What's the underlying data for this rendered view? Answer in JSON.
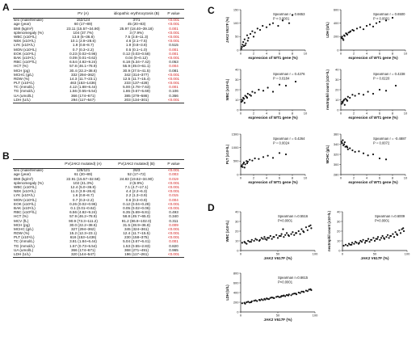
{
  "panels": {
    "a": "A",
    "b": "B",
    "c": "C",
    "d": "D"
  },
  "table_a": {
    "headers": [
      "",
      "PV (A)",
      "idiopathic erythrocytosis (B)",
      "P value"
    ],
    "rows": [
      [
        "sex (male/female)",
        "152/124",
        "37/1",
        "<0.001"
      ],
      [
        "age (year)",
        "60 (17~89)",
        "45 (20~83)",
        "<0.001"
      ],
      [
        "BMI (kg/m²)",
        "23.11 (15.57~34.90)",
        "25.97 (18.40~39.18)",
        "0.001"
      ],
      [
        "splenomegaly (%)",
        "104 (37.7%)",
        "3 (7.9%)",
        "<0.001"
      ],
      [
        "WBC (x10⁹/L)",
        "13.8 (5~36.8)",
        "7.5 (3.8~11.3)",
        "<0.001"
      ],
      [
        "NEK (x10⁹/L)",
        "10.1 (2.9~28.6)",
        "4.6 (2.1~7.5)",
        "<0.001"
      ],
      [
        "LYK (x10⁹/L)",
        "1.9 (0.8~8.7)",
        "1.9 (0.8~3.8)",
        "0.515"
      ],
      [
        "MON (x10⁹/L)",
        "0.7 (0.3~2.2)",
        "0.5 (0.1~1.0)",
        "0.001"
      ],
      [
        "EOK (x10⁹/L)",
        "0.23 (0.02~0.96)",
        "0.12 (0.03~0.58)",
        "0.001"
      ],
      [
        "BAK (x10⁹/L)",
        "0.09 (0.01~0.62)",
        "0.04 (0~0.12)",
        "<0.001"
      ],
      [
        "RBC (x10¹²/L)",
        "6.54 (4.82~9.24)",
        "6.18 (5.34~7.42)",
        "0.053"
      ],
      [
        "HCT (%)",
        "57.8 (46.1~78.9)",
        "55.9 (49.0~61.1)",
        "0.004"
      ],
      [
        "MCH (pg)",
        "30.4 (22.2~38.6)",
        "30.9 (27.5~41.5)",
        "0.081"
      ],
      [
        "MCHC (g/L)",
        "332 (294~362)",
        "342 (314~377)",
        "<0.001"
      ],
      [
        "RDW (%)",
        "14.3 (11.7~23.1)",
        "12.5 (11.7~15.4)",
        "<0.001"
      ],
      [
        "PLT (x10⁹/L)",
        "463 (153~1436)",
        "233 (137~428)",
        "<0.001"
      ],
      [
        "TC (mmol/L)",
        "4.12 (1.88~6.44)",
        "5.00 (2.78~7.63)",
        "0.001"
      ],
      [
        "TG (mmol/L)",
        "1.56 (0.55~5.54)",
        "1.86 (0.67~5.69)",
        "0.106"
      ],
      [
        "UA (umol/L)",
        "366 (174~671)",
        "385 (279~586)",
        "0.366"
      ],
      [
        "LDH (U/L)",
        "294 (117~547)",
        "203 (134~301)",
        "<0.001"
      ]
    ]
  },
  "table_b": {
    "headers": [
      "",
      "PV(JAK2 mutated) (A)",
      "PV(JAK2 mutated) (B)",
      "P value"
    ],
    "rows": [
      [
        "sex (male/female)",
        "126/121",
        "26/3",
        "<0.001"
      ],
      [
        "age (year)",
        "61 (20~89)",
        "52 (17~72)",
        "0.003"
      ],
      [
        "BMI (kg/m²)",
        "22.91 (15.57~32.58)",
        "24.83 (19.62~34.90)",
        "0.019"
      ],
      [
        "splenomegaly (%)",
        "102 (41.3%)",
        "2 (6.9%)",
        "<0.001"
      ],
      [
        "WBC (x10⁹/L)",
        "12.4 (5.0~36.8)",
        "7.1 (4.7~17.1)",
        "<0.001"
      ],
      [
        "NEK (x10⁹/L)",
        "11.3 (3.9~26.6)",
        "4.4 (2.2~6.3)",
        "<0.001"
      ],
      [
        "LYK (x10⁹/L)",
        "1.6 (0.8~8.7)",
        "2.2 (1.3~3.9)",
        "0.015"
      ],
      [
        "MON (x10⁹/L)",
        "0.7 (0.3~2.2)",
        "0.6 (0.3~0.9)",
        "0.004"
      ],
      [
        "EOK (x10⁹/L)",
        "0.26 (0.02~0.96)",
        "0.12 (0.04~0.28)",
        "<0.001"
      ],
      [
        "BAK (x10⁹/L)",
        "0.1 (0.01~0.62)",
        "0.05 (0.02~0.06)",
        "<0.001"
      ],
      [
        "RBC (x10¹²/L)",
        "6.56 (4.82~9.24)",
        "6.35 (5.69~6.81)",
        "0.493"
      ],
      [
        "HCT (%)",
        "57.9 (46.2~78.9)",
        "58.8 (49.7~65.0)",
        "0.340"
      ],
      [
        "MCV (fL)",
        "90.9 (73.3~111.2)",
        "91.2 (86.9~102.0)",
        "0.311"
      ],
      [
        "MCH (pg)",
        "30.0 (22.2~38.6)",
        "31.5 (28.9~36.8)",
        "0.009"
      ],
      [
        "MCHC (g/L)",
        "327 (294~362)",
        "345 (324~361)",
        "<0.001"
      ],
      [
        "RDW (%)",
        "15.2 (12.3~23.1)",
        "12.4 (11.7~15.5)",
        "<0.001"
      ],
      [
        "PLT (x10⁹/L)",
        "616 (153~1436)",
        "230 (158~375)",
        "<0.001"
      ],
      [
        "TC (mmol/L)",
        "3.81 (1.84~6.44)",
        "5.04 (3.67~6.41)",
        "0.001"
      ],
      [
        "TG (mmol/L)",
        "1.57 (0.73~5.54)",
        "1.53 (0.55~2.83)",
        "0.820"
      ],
      [
        "UA (umol/L)",
        "366 (174~671)",
        "368 (271~491)",
        "0.965"
      ],
      [
        "LDH (U/L)",
        "320 (144~547)",
        "196 (117~261)",
        "<0.001"
      ]
    ]
  },
  "chart_data": [
    {
      "type": "scatter",
      "panel": "C",
      "xlabel": "expression of WT1 gene (%)",
      "ylabel": "JAK2 V617F (%)",
      "annotations": [
        "Spearman r = 0.6653",
        "P < 0.0001"
      ],
      "x_ticks": [
        "0",
        "2",
        "4",
        "6",
        "8",
        "10"
      ],
      "y_ticks": [
        "0",
        "50",
        "100",
        "150"
      ],
      "xlim": [
        0,
        10
      ],
      "ylim": [
        0,
        150
      ],
      "x": [
        0.1,
        0.2,
        0.3,
        0.4,
        0.5,
        0.6,
        0.8,
        1.0,
        1.2,
        1.5,
        1.8,
        2.2,
        2.6,
        3.0,
        3.4,
        4.0,
        4.5,
        5.0,
        5.8,
        6.5,
        7.5,
        8.0,
        2.0,
        1.1,
        0.7
      ],
      "y": [
        5,
        12,
        20,
        30,
        15,
        40,
        25,
        55,
        45,
        60,
        70,
        65,
        80,
        75,
        90,
        85,
        95,
        100,
        90,
        110,
        100,
        130,
        50,
        35,
        18
      ]
    },
    {
      "type": "scatter",
      "panel": "C",
      "xlabel": "expression of WT1 gene (%)",
      "ylabel": "LDH (U/L)",
      "annotations": [
        "Spearman r = 0.6500",
        "P < 0.0001"
      ],
      "x_ticks": [
        "0",
        "2",
        "4",
        "6",
        "8",
        "10"
      ],
      "y_ticks": [
        "0",
        "200",
        "400",
        "600"
      ],
      "xlim": [
        0,
        10
      ],
      "ylim": [
        0,
        600
      ],
      "x": [
        0.1,
        0.2,
        0.3,
        0.5,
        0.6,
        0.8,
        1.0,
        1.2,
        1.5,
        1.8,
        2.0,
        2.5,
        3.0,
        3.5,
        4.0,
        4.5,
        5.0,
        5.5,
        6.0,
        7.0,
        8.0,
        0.4,
        0.9,
        1.4
      ],
      "y": [
        180,
        200,
        170,
        220,
        210,
        250,
        230,
        260,
        280,
        300,
        290,
        320,
        340,
        310,
        360,
        380,
        350,
        400,
        420,
        440,
        480,
        150,
        240,
        270
      ]
    },
    {
      "type": "scatter",
      "panel": "C",
      "xlabel": "expression of WT1 gene (%)",
      "ylabel": "WBC (x10⁹/L)",
      "annotations": [
        "Spearman r = 0.4276",
        "P = 0.0184"
      ],
      "x_ticks": [
        "0",
        "2",
        "4",
        "6",
        "8",
        "10"
      ],
      "y_ticks": [
        "0",
        "10",
        "20",
        "30",
        "40"
      ],
      "xlim": [
        0,
        10
      ],
      "ylim": [
        0,
        40
      ],
      "x": [
        0.1,
        0.2,
        0.3,
        0.4,
        0.5,
        0.7,
        0.9,
        1.1,
        1.4,
        1.8,
        2.2,
        2.8,
        3.5,
        4.2,
        5.0,
        6.0,
        7.0,
        8.5,
        0.6,
        1.0,
        1.6
      ],
      "y": [
        8,
        10,
        9,
        12,
        11,
        14,
        13,
        16,
        15,
        18,
        17,
        20,
        19,
        22,
        18,
        25,
        24,
        28,
        7,
        12,
        14
      ]
    },
    {
      "type": "scatter",
      "panel": "C",
      "xlabel": "expression of WT1 gene (%)",
      "ylabel": "neutrophil count (x10⁹/L)",
      "annotations": [
        "Spearman r = 0.4238",
        "P = 0.0220"
      ],
      "x_ticks": [
        "0",
        "2",
        "4",
        "6",
        "8",
        "10"
      ],
      "y_ticks": [
        "0",
        "10",
        "20",
        "30",
        "40"
      ],
      "xlim": [
        0,
        10
      ],
      "ylim": [
        0,
        40
      ],
      "x": [
        0.1,
        0.2,
        0.3,
        0.4,
        0.5,
        0.7,
        0.9,
        1.1,
        1.4,
        1.8,
        2.2,
        2.8,
        3.5,
        4.2,
        5.0,
        6.0,
        7.0,
        8.5,
        0.6,
        1.0
      ],
      "y": [
        6,
        8,
        7,
        9,
        10,
        11,
        10,
        13,
        12,
        15,
        14,
        16,
        15,
        18,
        16,
        20,
        19,
        24,
        5,
        9
      ]
    },
    {
      "type": "scatter",
      "panel": "C",
      "xlabel": "expression of WT1 gene (%)",
      "ylabel": "PLT (x10⁹/L)",
      "annotations": [
        "Spearman r = 0.4264",
        "P = 0.0024"
      ],
      "x_ticks": [
        "0",
        "2",
        "4",
        "6",
        "8",
        "10"
      ],
      "y_ticks": [
        "0",
        "500",
        "1000",
        "1500"
      ],
      "xlim": [
        0,
        10
      ],
      "ylim": [
        0,
        1500
      ],
      "x": [
        0.1,
        0.2,
        0.3,
        0.4,
        0.5,
        0.7,
        0.9,
        1.1,
        1.4,
        1.8,
        2.2,
        2.8,
        3.5,
        4.2,
        5.0,
        6.0,
        7.0,
        0.6,
        1.0
      ],
      "y": [
        300,
        350,
        280,
        400,
        450,
        380,
        500,
        480,
        550,
        520,
        600,
        580,
        650,
        700,
        620,
        800,
        750,
        260,
        420
      ]
    },
    {
      "type": "scatter",
      "panel": "C",
      "xlabel": "expression of WT1 gene (%)",
      "ylabel": "MCHC (g/L)",
      "annotations": [
        "Spearman r = -0.4887",
        "P = 0.0072"
      ],
      "x_ticks": [
        "0",
        "2",
        "4",
        "6",
        "8",
        "10"
      ],
      "y_ticks": [
        "280",
        "300",
        "320",
        "340",
        "360"
      ],
      "xlim": [
        0,
        10
      ],
      "ylim": [
        280,
        360
      ],
      "x": [
        0.1,
        0.2,
        0.3,
        0.4,
        0.5,
        0.7,
        0.9,
        1.1,
        1.4,
        1.8,
        2.2,
        2.8,
        3.5,
        4.2,
        5.0,
        6.0,
        7.0,
        0.6,
        1.0
      ],
      "y": [
        345,
        342,
        348,
        338,
        340,
        335,
        336,
        330,
        332,
        328,
        325,
        326,
        322,
        318,
        320,
        312,
        310,
        344,
        334
      ]
    },
    {
      "type": "scatter",
      "panel": "D",
      "xlabel": "JAK2 V617F (%)",
      "ylabel": "WBC (x10⁹/L)",
      "annotations": [
        "Spearman r=0.5516",
        "P<0.0001"
      ],
      "x_ticks": [
        "0",
        "50",
        "100"
      ],
      "y_ticks": [
        "0",
        "10",
        "20",
        "30",
        "40"
      ],
      "xlim": [
        0,
        100
      ],
      "ylim": [
        0,
        40
      ],
      "x": [
        2,
        5,
        8,
        10,
        12,
        15,
        18,
        20,
        22,
        25,
        28,
        30,
        32,
        35,
        38,
        40,
        42,
        45,
        48,
        50,
        52,
        55,
        58,
        60,
        62,
        65,
        68,
        70,
        72,
        75,
        78,
        80,
        82,
        85,
        88,
        90,
        92,
        95,
        14,
        26,
        36,
        44,
        54,
        64,
        74,
        84,
        94,
        6,
        33,
        57
      ],
      "y": [
        8,
        9,
        7,
        10,
        9,
        11,
        10,
        12,
        11,
        10,
        13,
        12,
        14,
        11,
        13,
        15,
        12,
        14,
        16,
        13,
        15,
        17,
        14,
        16,
        18,
        15,
        17,
        19,
        16,
        18,
        20,
        17,
        22,
        19,
        24,
        21,
        25,
        23,
        9,
        11,
        13,
        14,
        15,
        16,
        18,
        20,
        26,
        8,
        12,
        22
      ]
    },
    {
      "type": "scatter",
      "panel": "D",
      "xlabel": "JAK2 V617F (%)",
      "ylabel": "neutrophil count (x10⁹/L)",
      "annotations": [
        "Spearman r=0.6009",
        "P<0.0001"
      ],
      "x_ticks": [
        "0",
        "50",
        "100"
      ],
      "y_ticks": [
        "0",
        "10",
        "20",
        "30",
        "40"
      ],
      "xlim": [
        0,
        100
      ],
      "ylim": [
        0,
        40
      ],
      "x": [
        2,
        5,
        8,
        10,
        12,
        15,
        18,
        20,
        22,
        25,
        28,
        30,
        32,
        35,
        38,
        40,
        42,
        45,
        48,
        50,
        52,
        55,
        58,
        60,
        62,
        65,
        68,
        70,
        72,
        75,
        78,
        80,
        82,
        85,
        88,
        90,
        92,
        95,
        14,
        26,
        36,
        44,
        54,
        64,
        74,
        84,
        94
      ],
      "y": [
        5,
        6,
        5,
        7,
        6,
        8,
        7,
        9,
        8,
        7,
        10,
        9,
        11,
        8,
        10,
        12,
        9,
        11,
        13,
        10,
        12,
        14,
        11,
        13,
        15,
        12,
        14,
        16,
        13,
        15,
        17,
        14,
        19,
        16,
        21,
        18,
        22,
        20,
        6,
        8,
        10,
        11,
        12,
        13,
        15,
        17,
        23
      ]
    },
    {
      "type": "scatter",
      "panel": "D",
      "xlabel": "JAK2 V617F (%)",
      "ylabel": "LDH (U/L)",
      "annotations": [
        "Spearman r=0.6615",
        "P<0.0001"
      ],
      "x_ticks": [
        "0",
        "50",
        "100"
      ],
      "y_ticks": [
        "0",
        "200",
        "400",
        "600",
        "800"
      ],
      "xlim": [
        0,
        100
      ],
      "ylim": [
        0,
        800
      ],
      "x": [
        2,
        5,
        8,
        10,
        12,
        15,
        18,
        20,
        22,
        25,
        28,
        30,
        32,
        35,
        38,
        40,
        42,
        45,
        48,
        50,
        52,
        55,
        58,
        60,
        62,
        65,
        68,
        70,
        72,
        75,
        78,
        80,
        82,
        85,
        88,
        90,
        92,
        95,
        14,
        26,
        36,
        44,
        54,
        64,
        74,
        84,
        94,
        6,
        33,
        57
      ],
      "y": [
        180,
        190,
        200,
        210,
        195,
        220,
        230,
        240,
        225,
        250,
        260,
        245,
        270,
        280,
        265,
        290,
        300,
        285,
        310,
        320,
        305,
        330,
        340,
        325,
        350,
        360,
        345,
        370,
        380,
        365,
        400,
        390,
        420,
        410,
        440,
        430,
        460,
        450,
        200,
        240,
        270,
        290,
        310,
        340,
        380,
        420,
        470,
        170,
        255,
        330
      ]
    }
  ]
}
